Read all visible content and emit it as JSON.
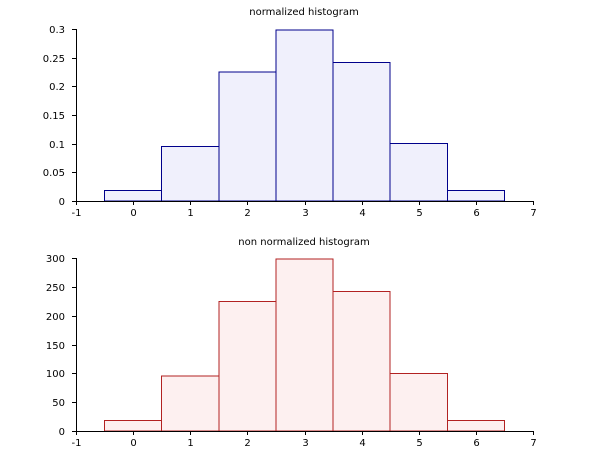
{
  "chart_data": [
    {
      "type": "bar",
      "title": "normalized histogram",
      "xlabel": "",
      "ylabel": "",
      "xlim": [
        -1,
        7
      ],
      "ylim": [
        0,
        0.3
      ],
      "xticks": [
        "-1",
        "0",
        "1",
        "2",
        "3",
        "4",
        "5",
        "6",
        "7"
      ],
      "yticks": [
        "0",
        "0.05",
        "0.1",
        "0.15",
        "0.2",
        "0.25",
        "0.3"
      ],
      "bins": [
        {
          "from": -0.5,
          "to": 0.5,
          "value": 0.018
        },
        {
          "from": 0.5,
          "to": 1.5,
          "value": 0.095
        },
        {
          "from": 1.5,
          "to": 2.5,
          "value": 0.225
        },
        {
          "from": 2.5,
          "to": 3.5,
          "value": 0.298
        },
        {
          "from": 3.5,
          "to": 4.5,
          "value": 0.242
        },
        {
          "from": 4.5,
          "to": 5.5,
          "value": 0.1
        },
        {
          "from": 5.5,
          "to": 6.5,
          "value": 0.018
        }
      ],
      "colors": {
        "edge": "#00008b",
        "fill": "#f0f0fc"
      }
    },
    {
      "type": "bar",
      "title": "non normalized histogram",
      "xlabel": "",
      "ylabel": "",
      "xlim": [
        -1,
        7
      ],
      "ylim": [
        0,
        300
      ],
      "xticks": [
        "-1",
        "0",
        "1",
        "2",
        "3",
        "4",
        "5",
        "6",
        "7"
      ],
      "yticks": [
        "0",
        "50",
        "100",
        "150",
        "200",
        "250",
        "300"
      ],
      "bins": [
        {
          "from": -0.5,
          "to": 0.5,
          "value": 18
        },
        {
          "from": 0.5,
          "to": 1.5,
          "value": 95
        },
        {
          "from": 1.5,
          "to": 2.5,
          "value": 225
        },
        {
          "from": 2.5,
          "to": 3.5,
          "value": 298
        },
        {
          "from": 3.5,
          "to": 4.5,
          "value": 242
        },
        {
          "from": 4.5,
          "to": 5.5,
          "value": 100
        },
        {
          "from": 5.5,
          "to": 6.5,
          "value": 18
        }
      ],
      "colors": {
        "edge": "#b22222",
        "fill": "#fdf0f0"
      }
    }
  ]
}
